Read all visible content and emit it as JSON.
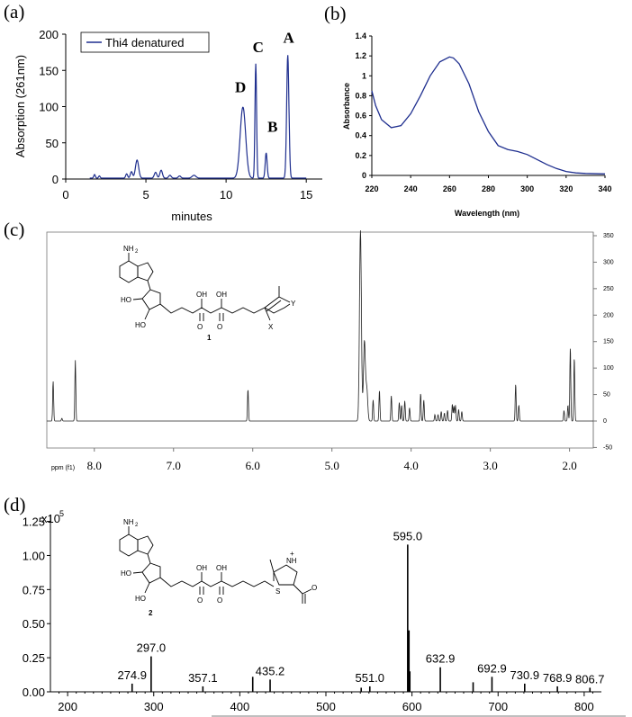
{
  "panel_labels": {
    "a": "(a)",
    "b": "(b)",
    "c": "(c)",
    "d": "(d)"
  },
  "molecules": {
    "one": {
      "nh2": "NH",
      "nh2_sub": "2",
      "ho1": "HO",
      "ho2": "HO",
      "oh1": "OH",
      "oh2": "OH",
      "o1": "O",
      "o2": "O",
      "y": "Y",
      "x": "X",
      "label": "1"
    },
    "two": {
      "nh2": "NH",
      "nh2_sub": "2",
      "ho1": "HO",
      "ho2": "HO",
      "oh1": "OH",
      "oh2": "OH",
      "o1": "O",
      "o2": "O",
      "nh": "NH",
      "plus": "+",
      "s": "S",
      "coo": "O",
      "label": "2"
    }
  },
  "colors": {
    "trace_blue": "#1f2f8f",
    "ink": "#000000"
  },
  "chart_data": [
    {
      "id": "a",
      "type": "line",
      "xlabel": "minutes",
      "ylabel": "Absorption (261nm)",
      "xlim": [
        0,
        16
      ],
      "ylim": [
        0,
        200
      ],
      "xticks": [
        "0",
        "5",
        "10",
        "15"
      ],
      "yticks": [
        "0",
        "50",
        "100",
        "150",
        "200"
      ],
      "legend": {
        "position": "top-left",
        "entries": [
          "Thi4 denatured"
        ]
      },
      "series": [
        {
          "name": "Thi4 denatured",
          "peaks": [
            {
              "x": 1.8,
              "y": 5,
              "w": 0.05
            },
            {
              "x": 2.1,
              "y": 3,
              "w": 0.05
            },
            {
              "x": 3.8,
              "y": 6,
              "w": 0.06
            },
            {
              "x": 4.1,
              "y": 9,
              "w": 0.07
            },
            {
              "x": 4.45,
              "y": 25,
              "w": 0.1
            },
            {
              "x": 5.6,
              "y": 8,
              "w": 0.08
            },
            {
              "x": 5.95,
              "y": 11,
              "w": 0.08
            },
            {
              "x": 6.5,
              "y": 4,
              "w": 0.08
            },
            {
              "x": 7.1,
              "y": 3,
              "w": 0.08
            },
            {
              "x": 8.0,
              "y": 4,
              "w": 0.12
            },
            {
              "x": 11.05,
              "y": 98,
              "w": 0.17
            },
            {
              "x": 11.85,
              "y": 158,
              "w": 0.05
            },
            {
              "x": 12.5,
              "y": 35,
              "w": 0.06
            },
            {
              "x": 13.85,
              "y": 170,
              "w": 0.07
            }
          ]
        }
      ],
      "annotations": [
        {
          "text": "A",
          "x": 13.9,
          "y": 188
        },
        {
          "text": "B",
          "x": 12.9,
          "y": 65
        },
        {
          "text": "C",
          "x": 12.0,
          "y": 175
        },
        {
          "text": "D",
          "x": 10.9,
          "y": 120
        }
      ]
    },
    {
      "id": "b",
      "type": "line",
      "xlabel": "Wavelength (nm)",
      "ylabel": "Absorbance",
      "xlim": [
        220,
        340
      ],
      "ylim": [
        0,
        1.4
      ],
      "xticks": [
        "220",
        "240",
        "260",
        "280",
        "300",
        "320",
        "340"
      ],
      "yticks": [
        "0",
        "0.2",
        "0.4",
        "0.6",
        "0.8",
        "1",
        "1.2",
        "1.4"
      ],
      "series": [
        {
          "points": [
            [
              220,
              0.85
            ],
            [
              222,
              0.7
            ],
            [
              225,
              0.56
            ],
            [
              230,
              0.48
            ],
            [
              235,
              0.5
            ],
            [
              240,
              0.62
            ],
            [
              245,
              0.8
            ],
            [
              250,
              1.0
            ],
            [
              255,
              1.14
            ],
            [
              260,
              1.19
            ],
            [
              262,
              1.18
            ],
            [
              265,
              1.12
            ],
            [
              270,
              0.92
            ],
            [
              275,
              0.64
            ],
            [
              280,
              0.44
            ],
            [
              285,
              0.3
            ],
            [
              290,
              0.26
            ],
            [
              295,
              0.24
            ],
            [
              300,
              0.21
            ],
            [
              305,
              0.16
            ],
            [
              310,
              0.11
            ],
            [
              315,
              0.07
            ],
            [
              320,
              0.04
            ],
            [
              325,
              0.025
            ],
            [
              330,
              0.02
            ],
            [
              340,
              0.015
            ]
          ]
        }
      ]
    },
    {
      "id": "c",
      "type": "line",
      "xlabel": "ppm (f1)",
      "xlim": [
        8.6,
        1.7
      ],
      "ylim": [
        -60,
        360
      ],
      "xticks": [
        "8.0",
        "7.0",
        "6.0",
        "5.0",
        "4.0",
        "3.0",
        "2.0"
      ],
      "yticks": [
        "-50",
        "0",
        "50",
        "100",
        "150",
        "200",
        "250",
        "300",
        "350"
      ],
      "series": [
        {
          "peaks": [
            [
              8.52,
              75
            ],
            [
              8.41,
              5
            ],
            [
              8.24,
              115
            ],
            [
              6.06,
              60
            ],
            [
              4.64,
              360
            ],
            [
              4.59,
              150
            ],
            [
              4.56,
              60
            ],
            [
              4.48,
              40
            ],
            [
              4.4,
              58
            ],
            [
              4.25,
              48
            ],
            [
              4.15,
              35
            ],
            [
              4.12,
              30
            ],
            [
              4.08,
              38
            ],
            [
              4.02,
              25
            ],
            [
              3.88,
              52
            ],
            [
              3.84,
              40
            ],
            [
              3.7,
              12
            ],
            [
              3.66,
              12
            ],
            [
              3.62,
              18
            ],
            [
              3.58,
              15
            ],
            [
              3.54,
              20
            ],
            [
              3.48,
              32
            ],
            [
              3.46,
              28
            ],
            [
              3.44,
              30
            ],
            [
              3.4,
              22
            ],
            [
              3.36,
              18
            ],
            [
              2.68,
              70
            ],
            [
              2.64,
              30
            ],
            [
              2.07,
              20
            ],
            [
              2.02,
              30
            ],
            [
              1.99,
              140
            ],
            [
              1.94,
              120
            ]
          ]
        }
      ]
    },
    {
      "id": "d",
      "type": "bar",
      "ylabel_unit": "x10",
      "ylabel_exp": "5",
      "xlim": [
        180,
        820
      ],
      "ylim": [
        0,
        1.3
      ],
      "xticks": [
        "200",
        "300",
        "400",
        "500",
        "600",
        "700",
        "800"
      ],
      "yticks": [
        "0.00",
        "0.25",
        "0.50",
        "0.75",
        "1.00",
        "1.25"
      ],
      "peaks": [
        {
          "x": 274.9,
          "y": 0.06,
          "label": "274.9"
        },
        {
          "x": 297.0,
          "y": 0.26,
          "label": "297.0"
        },
        {
          "x": 357.1,
          "y": 0.04,
          "label": "357.1"
        },
        {
          "x": 415.0,
          "y": 0.11
        },
        {
          "x": 435.2,
          "y": 0.09,
          "label": "435.2"
        },
        {
          "x": 541.0,
          "y": 0.03
        },
        {
          "x": 551.0,
          "y": 0.04,
          "label": "551.0"
        },
        {
          "x": 595.0,
          "y": 1.08,
          "label": "595.0"
        },
        {
          "x": 596.5,
          "y": 0.45
        },
        {
          "x": 597.5,
          "y": 0.15
        },
        {
          "x": 632.9,
          "y": 0.18,
          "label": "632.9"
        },
        {
          "x": 671.0,
          "y": 0.07
        },
        {
          "x": 692.9,
          "y": 0.11,
          "label": "692.9"
        },
        {
          "x": 730.9,
          "y": 0.06,
          "label": "730.9"
        },
        {
          "x": 768.9,
          "y": 0.04,
          "label": "768.9"
        },
        {
          "x": 806.7,
          "y": 0.03,
          "label": "806.7"
        }
      ]
    }
  ]
}
